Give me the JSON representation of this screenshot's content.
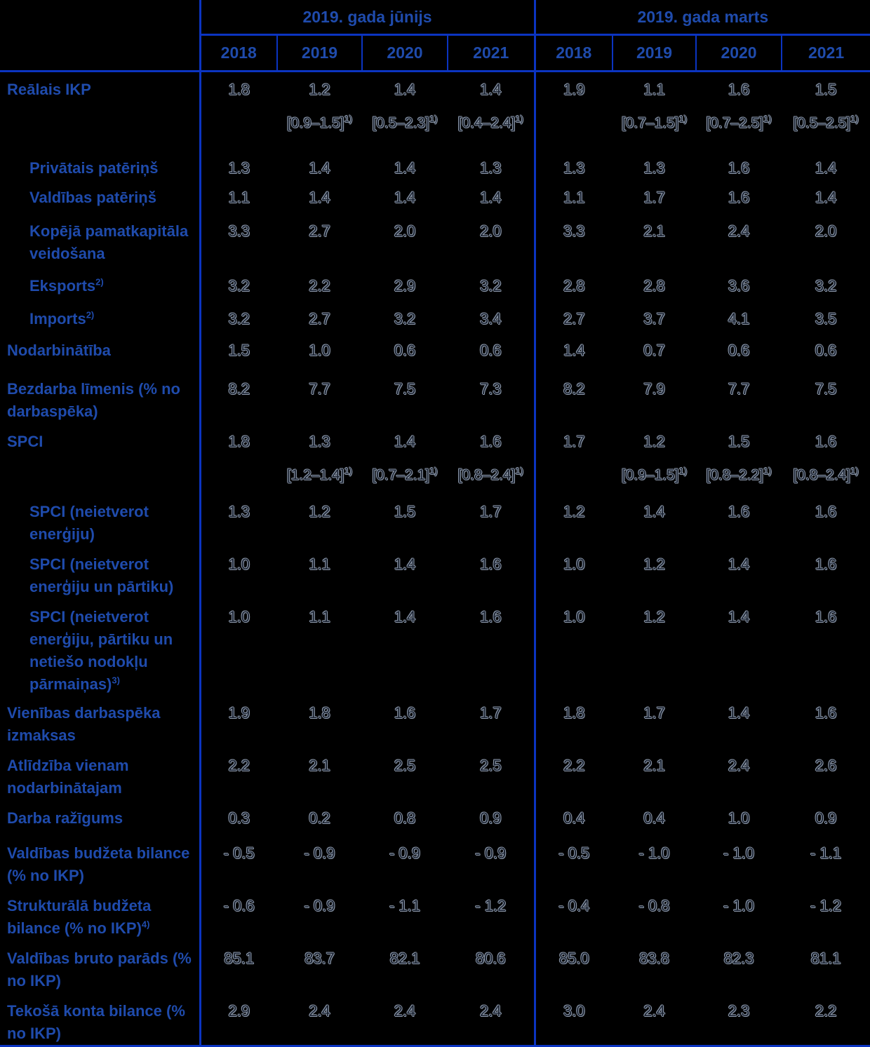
{
  "table": {
    "colors": {
      "line": "#0B34C1",
      "label_blue": "#1F4BAC",
      "value_core": "#1A2230",
      "value_edge": "#8F9AAB",
      "background": "#000000"
    },
    "groups": [
      "2019. gada jūnijs",
      "2019. gada marts"
    ],
    "years": [
      "2018",
      "2019",
      "2020",
      "2021",
      "2018",
      "2019",
      "2020",
      "2021"
    ],
    "range_sup": "1)",
    "rows": [
      {
        "label": "Reālais IKP",
        "indent": false,
        "values": [
          "1.8",
          "1.2",
          "1.4",
          "1.4",
          "1.9",
          "1.1",
          "1.6",
          "1.5"
        ],
        "ranges": [
          "",
          "[0.9–1.5]",
          "[0.5–2.3]",
          "[0.4–2.4]",
          "",
          "[0.7–1.5]",
          "[0.7–2.5]",
          "[0.5–2.5]"
        ]
      },
      {
        "label": "Privātais patēriņš",
        "indent": true,
        "values": [
          "1.3",
          "1.4",
          "1.4",
          "1.3",
          "1.3",
          "1.3",
          "1.6",
          "1.4"
        ]
      },
      {
        "label": "Valdības patēriņš",
        "indent": true,
        "values": [
          "1.1",
          "1.4",
          "1.4",
          "1.4",
          "1.1",
          "1.7",
          "1.6",
          "1.4"
        ]
      },
      {
        "label": "Kopējā pamatkapitāla veidošana",
        "indent": true,
        "values": [
          "3.3",
          "2.7",
          "2.0",
          "2.0",
          "3.3",
          "2.1",
          "2.4",
          "2.0"
        ]
      },
      {
        "label": "Eksports",
        "sup": "2)",
        "indent": true,
        "values": [
          "3.2",
          "2.2",
          "2.9",
          "3.2",
          "2.8",
          "2.8",
          "3.6",
          "3.2"
        ]
      },
      {
        "label": "Imports",
        "sup": "2)",
        "indent": true,
        "values": [
          "3.2",
          "2.7",
          "3.2",
          "3.4",
          "2.7",
          "3.7",
          "4.1",
          "3.5"
        ]
      },
      {
        "label": "Nodarbinātība",
        "indent": false,
        "values": [
          "1.5",
          "1.0",
          "0.6",
          "0.6",
          "1.4",
          "0.7",
          "0.6",
          "0.6"
        ]
      },
      {
        "label": "Bezdarba līmenis (% no darbaspēka)",
        "indent": false,
        "values": [
          "8.2",
          "7.7",
          "7.5",
          "7.3",
          "8.2",
          "7.9",
          "7.7",
          "7.5"
        ]
      },
      {
        "label": "SPCI",
        "indent": false,
        "values": [
          "1.8",
          "1.3",
          "1.4",
          "1.6",
          "1.7",
          "1.2",
          "1.5",
          "1.6"
        ],
        "ranges": [
          "",
          "[1.2–1.4]",
          "[0.7–2.1]",
          "[0.8–2.4]",
          "",
          "[0.9–1.5]",
          "[0.8–2.2]",
          "[0.8–2.4]"
        ]
      },
      {
        "label": "SPCI (neietverot enerģiju)",
        "indent": true,
        "values": [
          "1.3",
          "1.2",
          "1.5",
          "1.7",
          "1.2",
          "1.4",
          "1.6",
          "1.6"
        ]
      },
      {
        "label": "SPCI (neietverot enerģiju un pārtiku)",
        "indent": true,
        "values": [
          "1.0",
          "1.1",
          "1.4",
          "1.6",
          "1.0",
          "1.2",
          "1.4",
          "1.6"
        ]
      },
      {
        "label": "SPCI (neietverot enerģiju, pārtiku un netiešo nodokļu pārmaiņas)",
        "sup": "3)",
        "indent": true,
        "values": [
          "1.0",
          "1.1",
          "1.4",
          "1.6",
          "1.0",
          "1.2",
          "1.4",
          "1.6"
        ]
      },
      {
        "label": "Vienības darbaspēka izmaksas",
        "indent": false,
        "values": [
          "1.9",
          "1.8",
          "1.6",
          "1.7",
          "1.8",
          "1.7",
          "1.4",
          "1.6"
        ]
      },
      {
        "label": "Atlīdzība vienam nodarbinātajam",
        "indent": false,
        "values": [
          "2.2",
          "2.1",
          "2.5",
          "2.5",
          "2.2",
          "2.1",
          "2.4",
          "2.6"
        ]
      },
      {
        "label": "Darba ražīgums",
        "indent": false,
        "values": [
          "0.3",
          "0.2",
          "0.8",
          "0.9",
          "0.4",
          "0.4",
          "1.0",
          "0.9"
        ]
      },
      {
        "label": "Valdības budžeta bilance (% no IKP)",
        "indent": false,
        "values": [
          "- 0.5",
          "- 0.9",
          "- 0.9",
          "- 0.9",
          "- 0.5",
          "- 1.0",
          "- 1.0",
          "- 1.1"
        ]
      },
      {
        "label": "Strukturālā budžeta bilance (% no IKP)",
        "sup": "4)",
        "indent": false,
        "values": [
          "- 0.6",
          "- 0.9",
          "- 1.1",
          "- 1.2",
          "- 0.4",
          "- 0.8",
          "- 1.0",
          "- 1.2"
        ]
      },
      {
        "label": "Valdības bruto parāds (% no IKP)",
        "indent": false,
        "values": [
          "85.1",
          "83.7",
          "82.1",
          "80.6",
          "85.0",
          "83.8",
          "82.3",
          "81.1"
        ]
      },
      {
        "label": "Tekošā konta bilance (% no IKP)",
        "indent": false,
        "values": [
          "2.9",
          "2.4",
          "2.4",
          "2.4",
          "3.0",
          "2.4",
          "2.3",
          "2.2"
        ]
      }
    ]
  }
}
